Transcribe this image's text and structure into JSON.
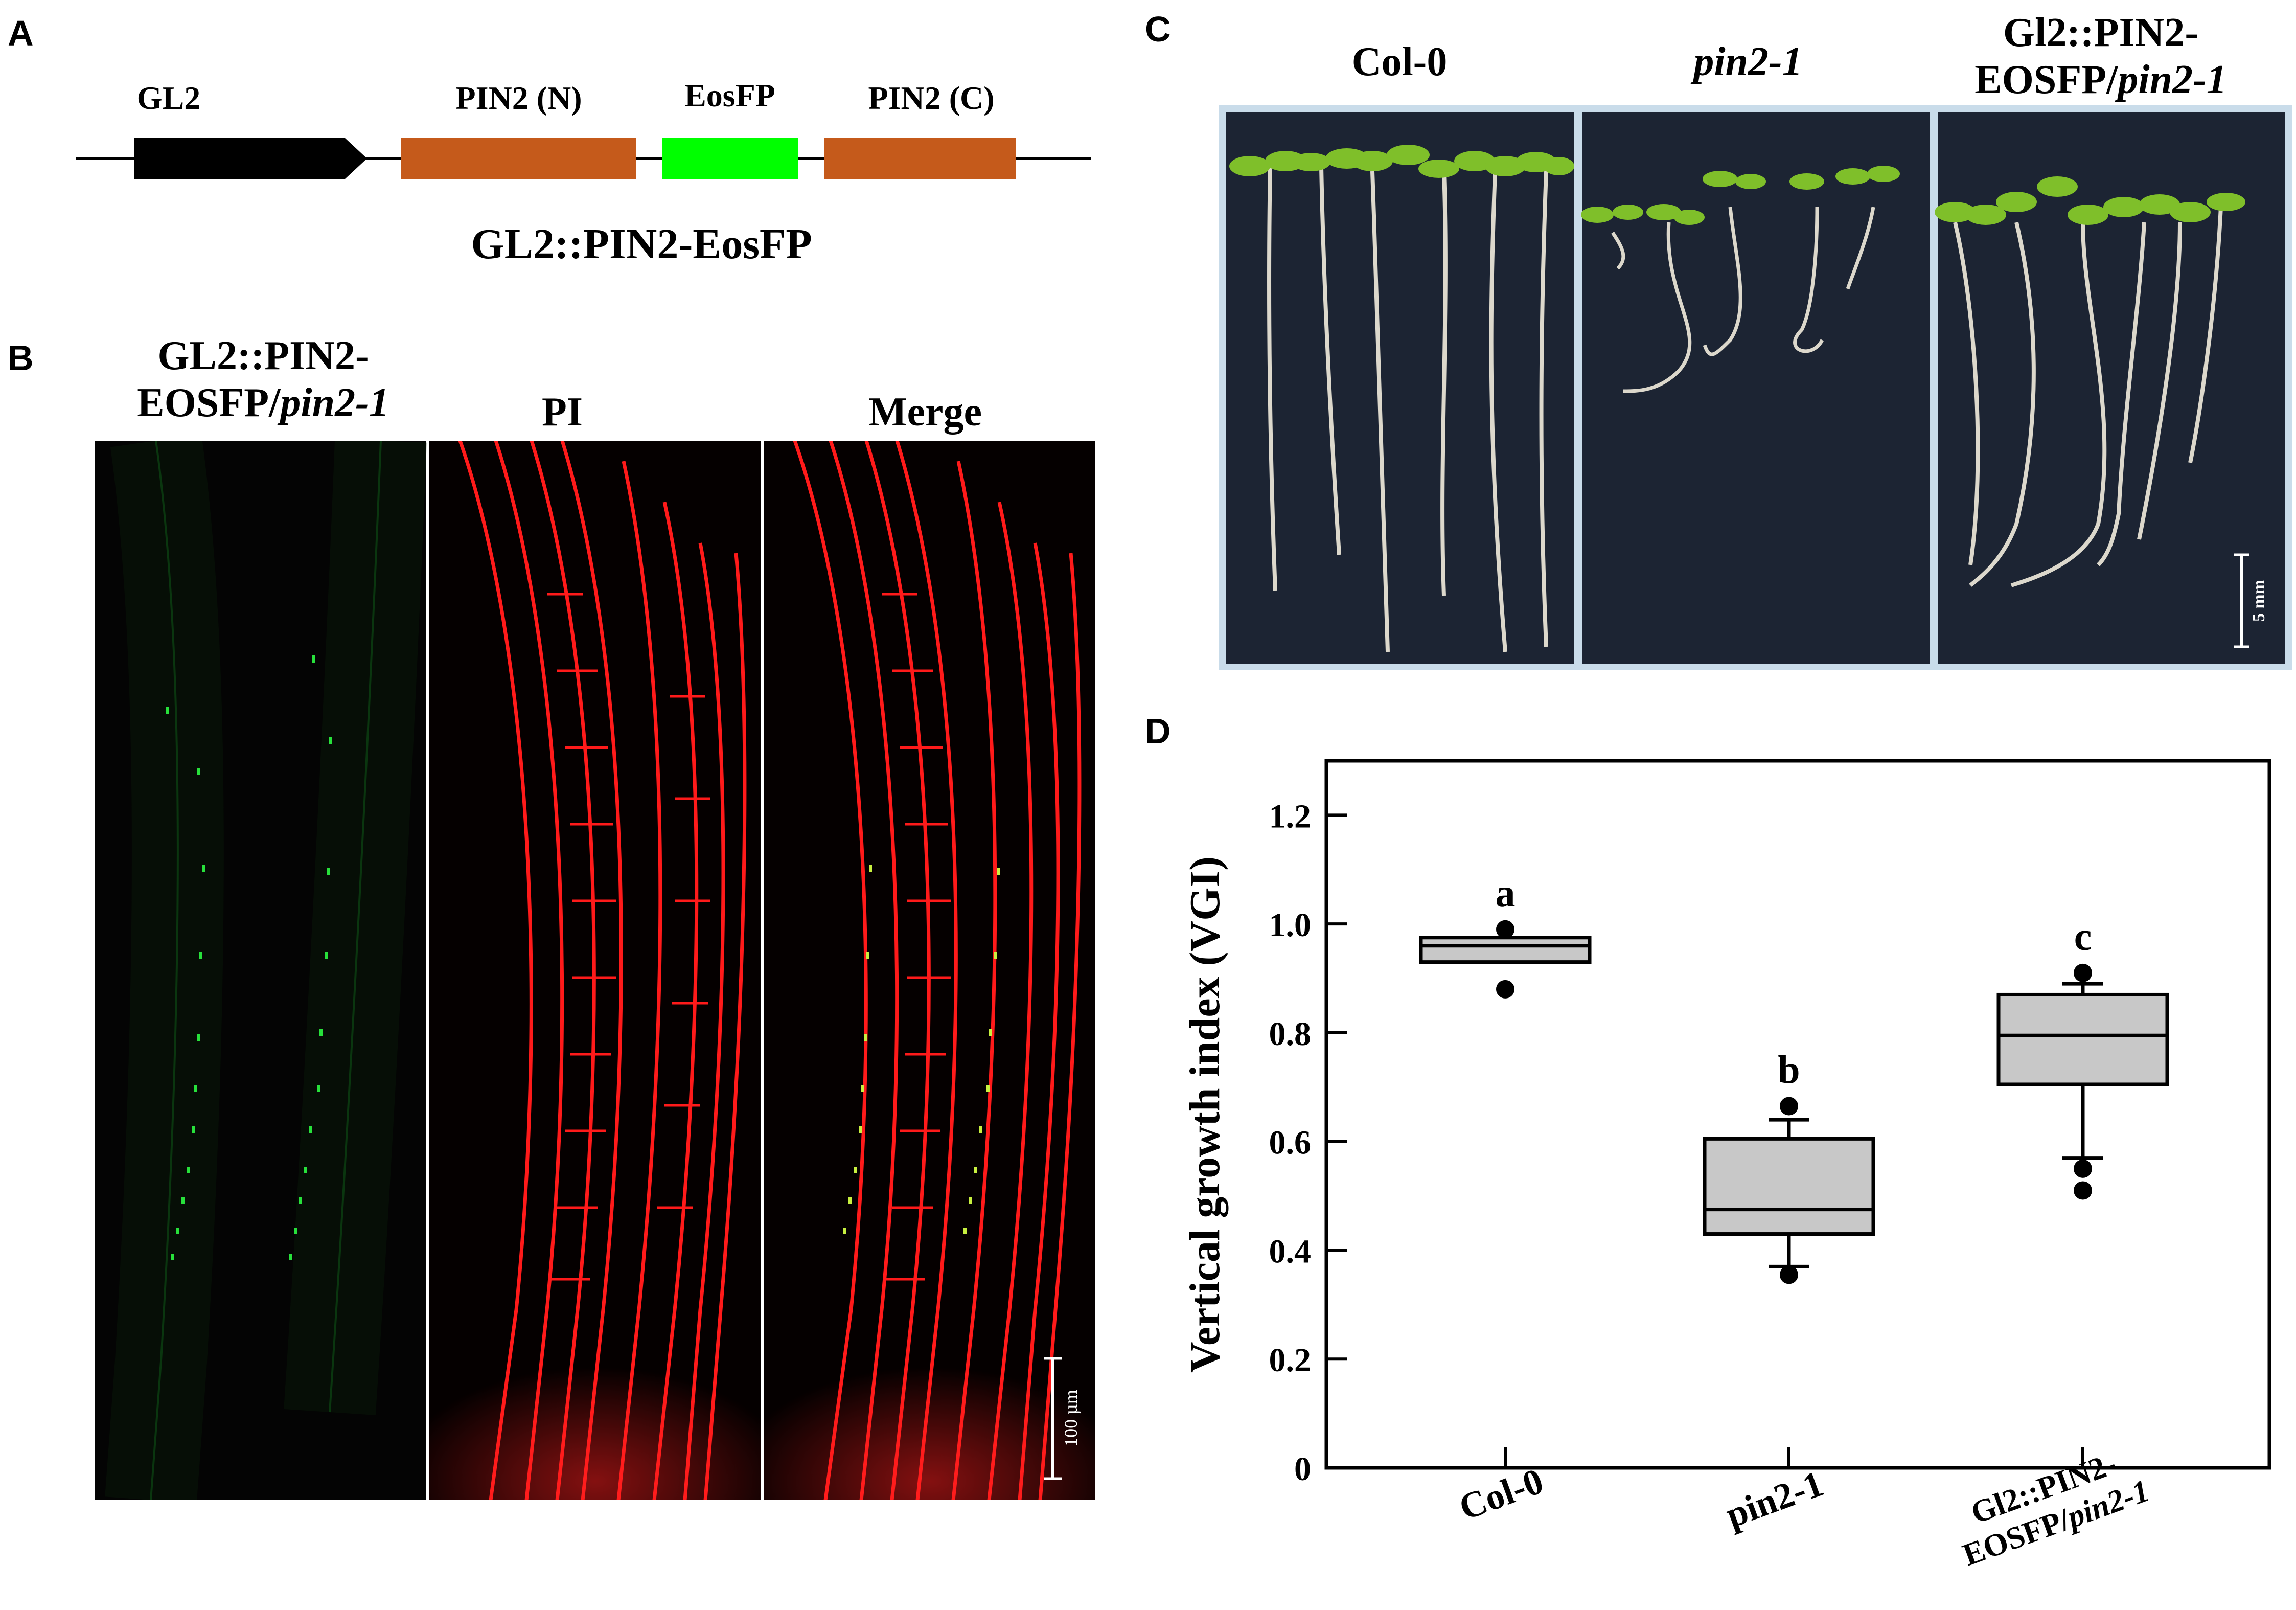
{
  "panels": {
    "a": {
      "letter": "A",
      "construct_parts": [
        {
          "label": "GL2",
          "color": "#000000"
        },
        {
          "label": "PIN2 (N)",
          "color": "#c55a1b"
        },
        {
          "label": "EosFP",
          "color": "#00ff00"
        },
        {
          "label": "PIN2 (C)",
          "color": "#c55a1b"
        }
      ],
      "construct_name": "GL2::PIN2-EosFP"
    },
    "b": {
      "letter": "B",
      "col1_line1": "GL2::PIN2-",
      "col1_line2a": "EOSFP/",
      "col1_line2b": "pin2-1",
      "col2": "PI",
      "col3": "Merge",
      "scale_bar": "100 µm",
      "images": [
        "green fluorescence micrograph of root",
        "PI-stained red micrograph of root",
        "merged micrograph of root"
      ]
    },
    "c": {
      "letter": "C",
      "col1": "Col-0",
      "col2": "pin2-1",
      "col3_line1": "Gl2::PIN2-",
      "col3_line2a": "EOSFP/",
      "col3_line2b": "pin2-1",
      "scale_bar": "5 mm",
      "images": [
        "Col-0 seedlings on agar",
        "pin2-1 seedlings on agar",
        "complemented seedlings on agar"
      ]
    },
    "d": {
      "letter": "D",
      "sig_letters": [
        "a",
        "b",
        "c"
      ],
      "categories": [
        "Col-0",
        "pin2-1",
        "Gl2::PIN2-|EOSFP/pin2-1"
      ]
    }
  },
  "colors": {
    "box_fill": "#c8c8c8",
    "pin2": "#c55a1b",
    "eosfp": "#00ff00",
    "pi_red": "#ff1a1a"
  },
  "chart_data": {
    "type": "box",
    "categories": [
      "Col-0",
      "pin2-1",
      "Gl2::PIN2-EOSFP/pin2-1"
    ],
    "xlabel": "",
    "ylabel": "Vertical growth index (VGI)",
    "ylim": [
      0,
      1.3
    ],
    "yticks": [
      0,
      0.2,
      0.4,
      0.6,
      0.8,
      1.0,
      1.2
    ],
    "ytick_labels": [
      "0",
      "0.2",
      "0.4",
      "0.6",
      "0.8",
      "1.0",
      "1.2"
    ],
    "boxes": [
      {
        "q1": 0.93,
        "median": 0.96,
        "q3": 0.975,
        "whisker_low": 0.93,
        "whisker_high": 0.975,
        "outliers": [
          0.99,
          0.88
        ]
      },
      {
        "q1": 0.43,
        "median": 0.475,
        "q3": 0.605,
        "whisker_low": 0.37,
        "whisker_high": 0.64,
        "outliers": [
          0.665,
          0.355
        ]
      },
      {
        "q1": 0.705,
        "median": 0.795,
        "q3": 0.87,
        "whisker_low": 0.57,
        "whisker_high": 0.89,
        "outliers": [
          0.91,
          0.55,
          0.51
        ]
      }
    ],
    "significance": [
      "a",
      "b",
      "c"
    ]
  }
}
